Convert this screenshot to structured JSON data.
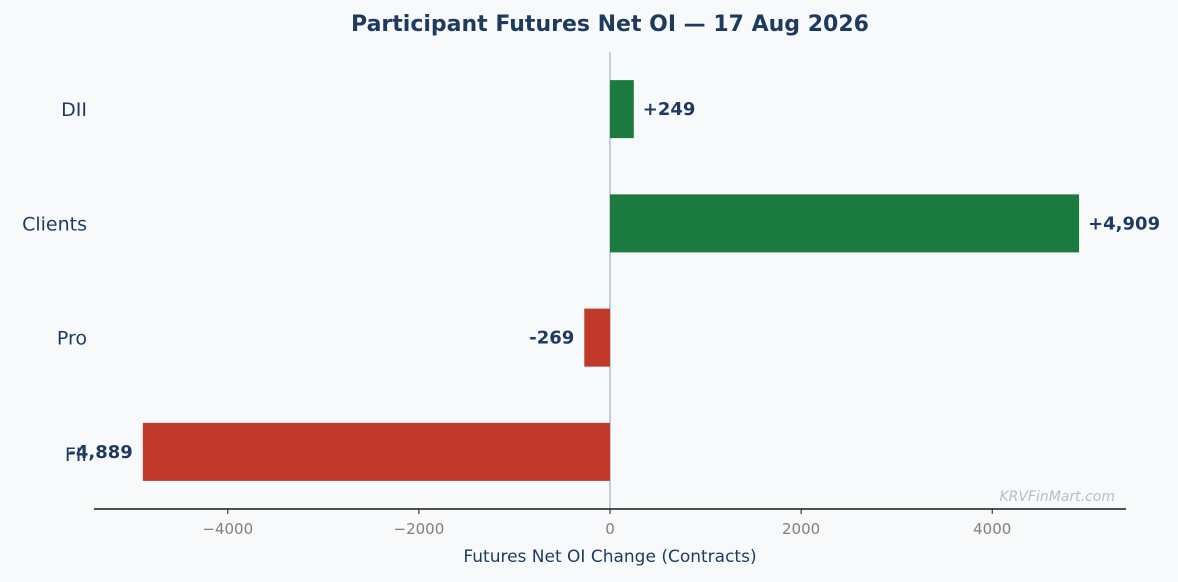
{
  "chart_data": {
    "type": "bar",
    "orientation": "horizontal",
    "title": "Participant Futures Net OI — 17 Aug 2026",
    "xlabel": "Futures Net OI Change (Contracts)",
    "ylabel": "",
    "categories": [
      "DII",
      "Clients",
      "Pro",
      "FII"
    ],
    "values": [
      249,
      4909,
      -269,
      -4889
    ],
    "data_labels": [
      "+249",
      "+4,909",
      "-269",
      "-4,889"
    ],
    "xlim": [
      -5400,
      5400
    ],
    "x_ticks": [
      -4000,
      -2000,
      0,
      2000,
      4000
    ],
    "x_tick_labels": [
      "−4000",
      "−2000",
      "0",
      "2000",
      "4000"
    ],
    "grid": false,
    "colors": {
      "positive": "#1b7a3d",
      "negative": "#c0392b",
      "zero_line": "#a9b7c6",
      "axis": "#1a1a1a",
      "text": "#1f3a5f",
      "tick_text": "#7f7f7f",
      "background": "#f7f9fb"
    }
  },
  "watermark": "KRVFinMart.com"
}
